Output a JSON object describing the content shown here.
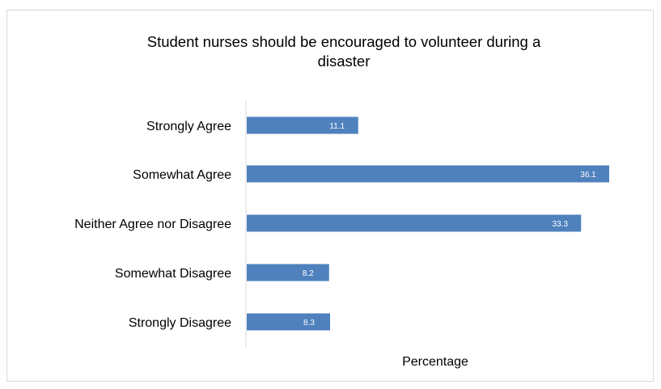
{
  "chart_data": {
    "type": "bar",
    "orientation": "horizontal",
    "title": "Student nurses should be encouraged to volunteer during a disaster",
    "title_lines": [
      "Student nurses should be encouraged to volunteer during a",
      "disaster"
    ],
    "xlabel": "Percentage",
    "ylabel": "",
    "categories": [
      "Strongly Agree",
      "Somewhat Agree",
      "Neither Agree nor Disagree",
      "Somewhat Disagree",
      "Strongly Disagree"
    ],
    "values": [
      11.1,
      36.1,
      33.3,
      8.2,
      8.3
    ],
    "xlim": [
      0,
      36.1
    ],
    "bar_color": "#4f81bd",
    "grid": false,
    "legend": "none"
  }
}
